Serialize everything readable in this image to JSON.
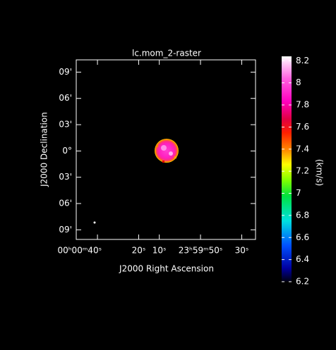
{
  "chart_data": {
    "type": "raster",
    "title": "lc.mom_2-raster",
    "x_label": "J2000 Right Ascension",
    "y_label": "J2000 Declination",
    "xlim": [
      50.3,
      -36.7
    ],
    "xticks": [
      {
        "value": 40,
        "label": "00ʰ00ᵐ40ˢ"
      },
      {
        "value": 20,
        "label": "20ˢ"
      },
      {
        "value": 10,
        "label": "10ˢ"
      },
      {
        "value": -10,
        "label": "23ʰ59ᵐ50ˢ"
      },
      {
        "value": -30,
        "label": "30ˢ"
      }
    ],
    "ylim": [
      -10.1,
      10.4
    ],
    "yticks": [
      {
        "value": 9,
        "label": "09'"
      },
      {
        "value": 6,
        "label": "06'"
      },
      {
        "value": 3,
        "label": "03'"
      },
      {
        "value": 0,
        "label": "0°"
      },
      {
        "value": -3,
        "label": "03'"
      },
      {
        "value": -6,
        "label": "06'"
      },
      {
        "value": -9,
        "label": "09'"
      }
    ],
    "colorbar": {
      "label": "(km/s)",
      "lim": [
        6.2,
        8.24
      ],
      "ticks": [
        6.2,
        6.4,
        6.6,
        6.8,
        7,
        7.2,
        7.4,
        7.6,
        7.8,
        8,
        8.2
      ]
    }
  }
}
